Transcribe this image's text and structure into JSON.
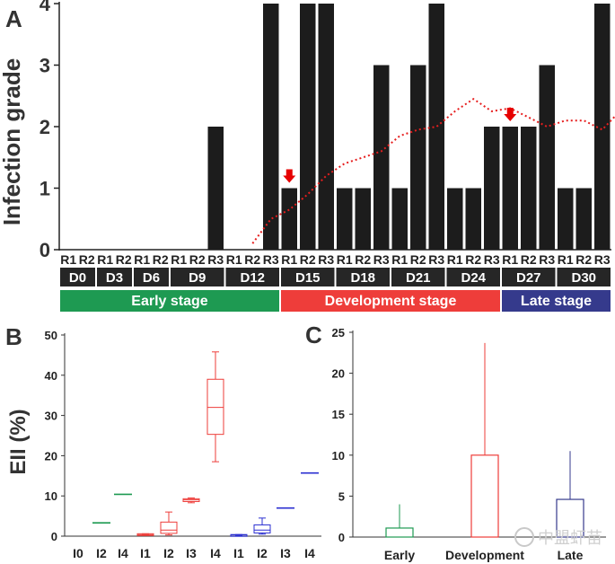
{
  "colors": {
    "bar": "#1c1c1c",
    "trend": "#e61e1e",
    "arrow": "#e60000",
    "early": "#1e9a52",
    "development": "#ee3d3a",
    "late": "#353a8c",
    "box_late": "#2b2fd0",
    "header_box": "#262626"
  },
  "chart_data": [
    {
      "panel": "A",
      "type": "bar",
      "ylabel": "Infection grade",
      "ylim": [
        0,
        4
      ],
      "yticks": [
        "0",
        "1",
        "2",
        "3",
        "4"
      ],
      "categories": [
        "D0-R1",
        "D0-R2",
        "D3-R1",
        "D3-R2",
        "D6-R1",
        "D6-R2",
        "D9-R1",
        "D9-R2",
        "D9-R3",
        "D12-R1",
        "D12-R2",
        "D12-R3",
        "D15-R1",
        "D15-R2",
        "D15-R3",
        "D18-R1",
        "D18-R2",
        "D18-R3",
        "D21-R1",
        "D21-R2",
        "D21-R3",
        "D24-R1",
        "D24-R2",
        "D24-R3",
        "D27-R1",
        "D27-R2",
        "D27-R3",
        "D30-R1",
        "D30-R2",
        "D30-R3"
      ],
      "tick_labels": [
        "R1",
        "R2",
        "R1",
        "R2",
        "R1",
        "R2",
        "R1",
        "R2",
        "R3",
        "R1",
        "R2",
        "R3",
        "R1",
        "R2",
        "R3",
        "R1",
        "R2",
        "R3",
        "R1",
        "R2",
        "R3",
        "R1",
        "R2",
        "R3",
        "R1",
        "R2",
        "R3",
        "R1",
        "R2",
        "R3"
      ],
      "values": [
        0,
        0,
        0,
        0,
        0,
        0,
        0,
        0,
        2,
        0,
        0,
        4,
        1,
        4,
        4,
        1,
        1,
        3,
        1,
        3,
        4,
        1,
        1,
        2,
        2,
        2,
        3,
        1,
        1,
        4
      ],
      "days": [
        {
          "label": "D0",
          "count": 2
        },
        {
          "label": "D3",
          "count": 2
        },
        {
          "label": "D6",
          "count": 2
        },
        {
          "label": "D9",
          "count": 3
        },
        {
          "label": "D12",
          "count": 3
        },
        {
          "label": "D15",
          "count": 3
        },
        {
          "label": "D18",
          "count": 3
        },
        {
          "label": "D21",
          "count": 3
        },
        {
          "label": "D24",
          "count": 3
        },
        {
          "label": "D27",
          "count": 3
        },
        {
          "label": "D30",
          "count": 3
        }
      ],
      "stages": [
        {
          "label": "Early stage",
          "from": 0,
          "to": 12,
          "color_key": "early"
        },
        {
          "label": "Development stage",
          "from": 12,
          "to": 24,
          "color_key": "development"
        },
        {
          "label": "Late stage",
          "from": 24,
          "to": 30,
          "color_key": "late"
        }
      ],
      "trend_line": {
        "style": "dotted",
        "points": [
          [
            10.5,
            0.1
          ],
          [
            11.5,
            0.5
          ],
          [
            12.5,
            0.65
          ],
          [
            13.5,
            0.9
          ],
          [
            14.5,
            1.2
          ],
          [
            15.5,
            1.4
          ],
          [
            16.5,
            1.5
          ],
          [
            17.5,
            1.6
          ],
          [
            18.5,
            1.85
          ],
          [
            19.5,
            1.95
          ],
          [
            20.5,
            2.0
          ],
          [
            21.5,
            2.25
          ],
          [
            22.5,
            2.45
          ],
          [
            23.5,
            2.25
          ],
          [
            24.5,
            2.3
          ],
          [
            25.5,
            2.15
          ],
          [
            26.5,
            2.0
          ],
          [
            27.5,
            2.1
          ],
          [
            28.5,
            2.1
          ],
          [
            29.5,
            1.95
          ],
          [
            30.3,
            2.2
          ]
        ]
      },
      "arrows": [
        {
          "at": 12.5,
          "y": 1.0
        },
        {
          "at": 24.5,
          "y": 2.0
        }
      ]
    },
    {
      "panel": "B",
      "type": "box",
      "ylabel": "EII (%)",
      "ylim": [
        0,
        50
      ],
      "yticks": [
        "0",
        "10",
        "20",
        "30",
        "40",
        "50"
      ],
      "boxes": [
        {
          "label": "I0",
          "group": "early",
          "min": 0,
          "q1": 0,
          "median": 0,
          "q3": 0,
          "max": 0
        },
        {
          "label": "I2",
          "group": "early",
          "min": 3.3,
          "q1": 3.3,
          "median": 3.3,
          "q3": 3.3,
          "max": 3.3
        },
        {
          "label": "I4",
          "group": "early",
          "min": 10.4,
          "q1": 10.4,
          "median": 10.4,
          "q3": 10.4,
          "max": 10.4
        },
        {
          "label": "I1",
          "group": "development",
          "min": 0.2,
          "q1": 0.2,
          "median": 0.4,
          "q3": 0.6,
          "max": 0.6
        },
        {
          "label": "I2",
          "group": "development",
          "min": 0.3,
          "q1": 0.7,
          "median": 1.5,
          "q3": 3.5,
          "max": 6.0
        },
        {
          "label": "I3",
          "group": "development",
          "min": 8.3,
          "q1": 8.6,
          "median": 9.0,
          "q3": 9.3,
          "max": 9.5
        },
        {
          "label": "I4",
          "group": "development",
          "min": 18.5,
          "q1": 25.3,
          "median": 32.0,
          "q3": 39.0,
          "max": 45.8
        },
        {
          "label": "I1",
          "group": "late",
          "min": 0.1,
          "q1": 0.1,
          "median": 0.3,
          "q3": 0.4,
          "max": 0.4
        },
        {
          "label": "I2",
          "group": "late",
          "min": 0.5,
          "q1": 0.8,
          "median": 1.5,
          "q3": 2.8,
          "max": 4.5
        },
        {
          "label": "I3",
          "group": "late",
          "min": 7.0,
          "q1": 7.0,
          "median": 7.0,
          "q3": 7.0,
          "max": 7.0
        },
        {
          "label": "I4",
          "group": "late",
          "min": 15.7,
          "q1": 15.7,
          "median": 15.7,
          "q3": 15.7,
          "max": 15.7
        }
      ]
    },
    {
      "panel": "C",
      "type": "bar",
      "style": "open bar with upper error whisker",
      "ylim": [
        0,
        25
      ],
      "yticks": [
        "0",
        "5",
        "10",
        "15",
        "20",
        "25"
      ],
      "categories": [
        "Early",
        "Development",
        "Late"
      ],
      "values": [
        1.1,
        10.0,
        4.6
      ],
      "error_upper": [
        4.0,
        23.7,
        10.5
      ],
      "group_keys": [
        "early",
        "development",
        "late"
      ]
    }
  ],
  "watermark": "中盟虾苗"
}
